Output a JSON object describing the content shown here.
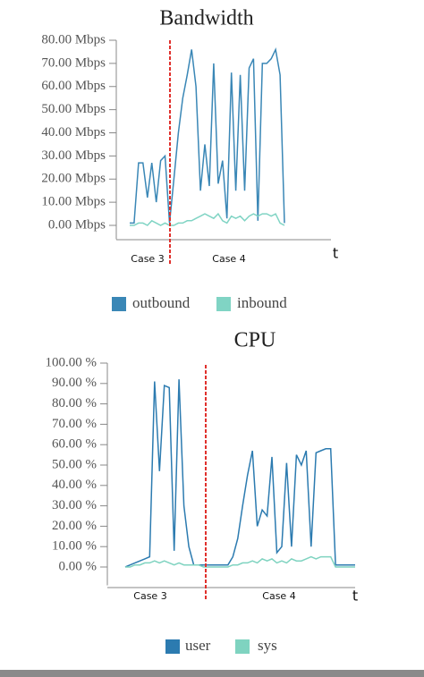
{
  "chart_data": [
    {
      "type": "line",
      "title": "Bandwidth",
      "x_label": "t",
      "annotations": [
        "Case 3",
        "Case 4"
      ],
      "categories": [
        null,
        null,
        null,
        null,
        null,
        null,
        null,
        null,
        null,
        null,
        null,
        null,
        null,
        null,
        null,
        null,
        null,
        null,
        null,
        null,
        null,
        null,
        null,
        null,
        null,
        null,
        null,
        null,
        null,
        null,
        null,
        null,
        null,
        null,
        null,
        null
      ],
      "series": [
        {
          "name": "outbound",
          "color": "#3a87b6",
          "values": [
            1,
            1,
            27,
            27,
            12,
            27,
            10,
            28,
            30,
            1,
            20,
            40,
            55,
            65,
            76,
            60,
            15,
            35,
            17,
            70,
            18,
            28,
            3,
            66,
            15,
            65,
            15,
            68,
            72,
            2,
            70,
            70,
            72,
            76,
            65,
            1
          ]
        },
        {
          "name": "inbound",
          "color": "#80d4c4",
          "values": [
            0,
            0,
            1,
            1,
            0,
            2,
            1,
            0,
            1,
            0,
            0,
            1,
            1,
            2,
            2,
            3,
            4,
            5,
            4,
            3,
            5,
            2,
            1,
            4,
            3,
            4,
            2,
            4,
            5,
            4,
            5,
            5,
            4,
            5,
            1,
            0
          ]
        }
      ],
      "ylim": [
        -6,
        80
      ],
      "yticks": [
        {
          "value": 0,
          "label": "0.00 Mbps"
        },
        {
          "value": 10,
          "label": "10.00 Mbps"
        },
        {
          "value": 20,
          "label": "20.00 Mbps"
        },
        {
          "value": 30,
          "label": "30.00 Mbps"
        },
        {
          "value": 40,
          "label": "40.00 Mbps"
        },
        {
          "value": 50,
          "label": "50.00 Mbps"
        },
        {
          "value": 60,
          "label": "60.00 Mbps"
        },
        {
          "value": 70,
          "label": "70.00 Mbps"
        },
        {
          "value": 80,
          "label": "80.00 Mbps"
        }
      ],
      "divider_color": "#e0302c"
    },
    {
      "type": "line",
      "title": "CPU",
      "x_label": "t",
      "annotations": [
        "Case 3",
        "Case 4"
      ],
      "categories": [
        null,
        null,
        null,
        null,
        null,
        null,
        null,
        null,
        null,
        null,
        null,
        null,
        null,
        null,
        null,
        null,
        null,
        null,
        null,
        null,
        null,
        null,
        null,
        null,
        null,
        null,
        null,
        null,
        null,
        null,
        null,
        null,
        null,
        null,
        null,
        null,
        null,
        null,
        null,
        null,
        null,
        null,
        null,
        null,
        null,
        null,
        null,
        null
      ],
      "series": [
        {
          "name": "user",
          "color": "#2c7bb0",
          "values": [
            0,
            1,
            2,
            3,
            4,
            5,
            91,
            47,
            89,
            88,
            8,
            92,
            30,
            10,
            1,
            1,
            1,
            1,
            1,
            1,
            1,
            1,
            5,
            14,
            30,
            45,
            57,
            20,
            28,
            25,
            54,
            7,
            10,
            51,
            10,
            55,
            50,
            57,
            10,
            56,
            57,
            58,
            58,
            1,
            1,
            1,
            1,
            1
          ]
        },
        {
          "name": "sys",
          "color": "#7fd3c0",
          "values": [
            0,
            0,
            1,
            1,
            2,
            2,
            3,
            2,
            3,
            2,
            1,
            2,
            1,
            1,
            1,
            1,
            0,
            0,
            0,
            0,
            0,
            0,
            1,
            1,
            2,
            2,
            3,
            2,
            4,
            3,
            4,
            2,
            3,
            2,
            4,
            3,
            3,
            4,
            5,
            4,
            5,
            5,
            5,
            0,
            0,
            0,
            0,
            0
          ]
        }
      ],
      "ylim": [
        -9,
        100
      ],
      "yticks": [
        {
          "value": 0,
          "label": "0.00 %"
        },
        {
          "value": 10,
          "label": "10.00 %"
        },
        {
          "value": 20,
          "label": "20.00 %"
        },
        {
          "value": 30,
          "label": "30.00 %"
        },
        {
          "value": 40,
          "label": "40.00 %"
        },
        {
          "value": 50,
          "label": "50.00 %"
        },
        {
          "value": 60,
          "label": "60.00 %"
        },
        {
          "value": 70,
          "label": "70.00 %"
        },
        {
          "value": 80,
          "label": "80.00 %"
        },
        {
          "value": 90,
          "label": "90.00 %"
        },
        {
          "value": 100,
          "label": "100.00 %"
        }
      ],
      "divider_color": "#e0302c"
    }
  ]
}
